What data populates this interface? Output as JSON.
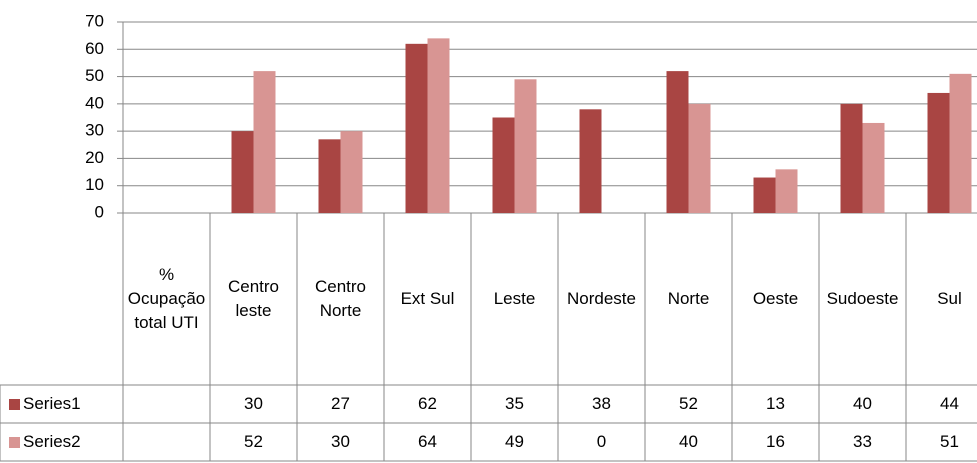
{
  "chart_data": {
    "type": "bar",
    "categories": [
      "% Ocupação total UTI",
      "Centro leste",
      "Centro Norte",
      "Ext Sul",
      "Leste",
      "Nordeste",
      "Norte",
      "Oeste",
      "Sudoeste",
      "Sul"
    ],
    "series": [
      {
        "name": "Series1",
        "color": "#a94543",
        "values": [
          null,
          30,
          27,
          62,
          35,
          38,
          52,
          13,
          40,
          44
        ]
      },
      {
        "name": "Series2",
        "color": "#d89593",
        "values": [
          null,
          52,
          30,
          64,
          49,
          0,
          40,
          16,
          33,
          51
        ]
      }
    ],
    "ylim": [
      0,
      70
    ],
    "yticks": [
      0,
      10,
      20,
      30,
      40,
      50,
      60,
      70
    ],
    "grid": true,
    "data_table": true
  }
}
